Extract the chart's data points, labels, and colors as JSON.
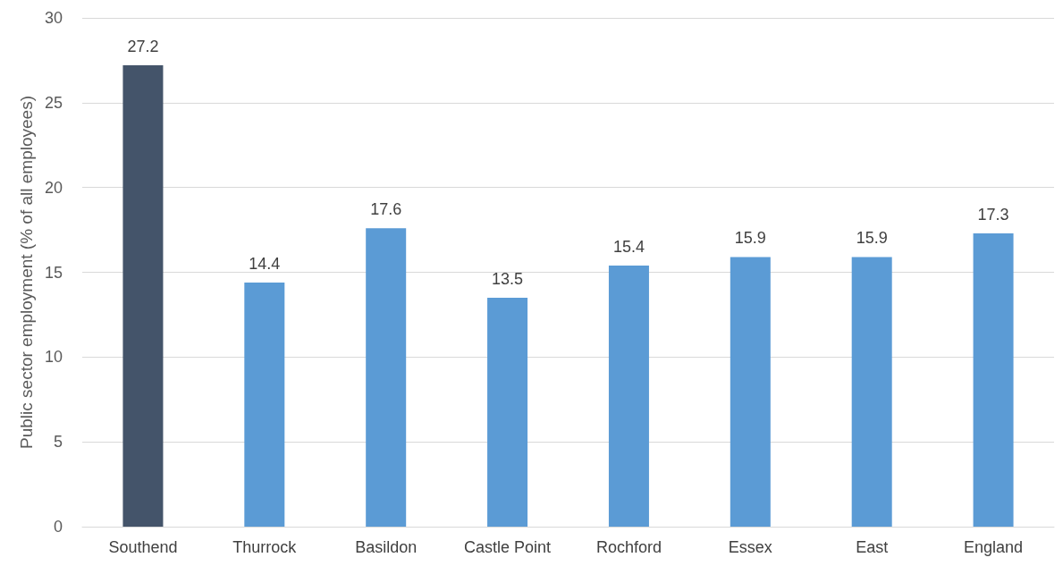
{
  "chart_data": {
    "type": "bar",
    "ylabel": "Public sector employment (% of all employees)",
    "categories": [
      "Southend",
      "Thurrock",
      "Basildon",
      "Castle Point",
      "Rochford",
      "Essex",
      "East",
      "England"
    ],
    "values": [
      27.2,
      14.4,
      17.6,
      13.5,
      15.4,
      15.9,
      15.9,
      17.3
    ],
    "colors": [
      "#44546a",
      "#5b9bd5",
      "#5b9bd5",
      "#5b9bd5",
      "#5b9bd5",
      "#5b9bd5",
      "#5b9bd5",
      "#5b9bd5"
    ],
    "ylim": [
      0,
      30
    ],
    "yticks": [
      0,
      5,
      10,
      15,
      20,
      25,
      30
    ],
    "grid": "y",
    "data_labels": true
  }
}
